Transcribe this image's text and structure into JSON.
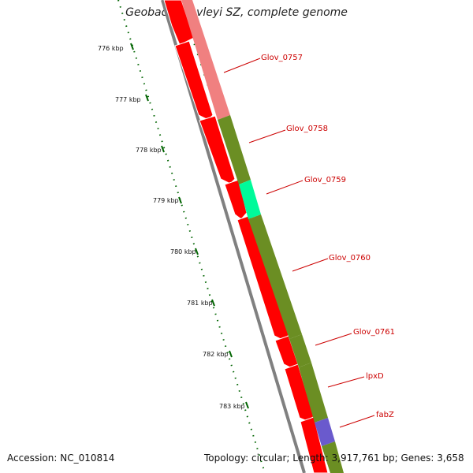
{
  "map": {
    "title": "Geobacter lovleyi SZ, complete genome",
    "accession": "Accession: NC_010814",
    "stats": "Topology: circular; Length: 3,917,761 bp; Genes: 3,658",
    "ticks": [
      "776 kbp",
      "777 kbp",
      "778 kbp",
      "779 kbp",
      "780 kbp",
      "781 kbp",
      "782 kbp",
      "783 kbp"
    ],
    "genes": [
      "Glov_0757",
      "Glov_0758",
      "Glov_0759",
      "Glov_0760",
      "Glov_0761",
      "lpxD",
      "fabZ"
    ],
    "colors": {
      "cds": "#ff0000",
      "cog_salmon": "#f08080",
      "cog_olive": "#6b8e23",
      "cog_aqua": "#00fa9a",
      "cog_violet": "#6a5acd",
      "backbone": "#808080",
      "tick": "#006400",
      "label": "#cc0000"
    }
  }
}
